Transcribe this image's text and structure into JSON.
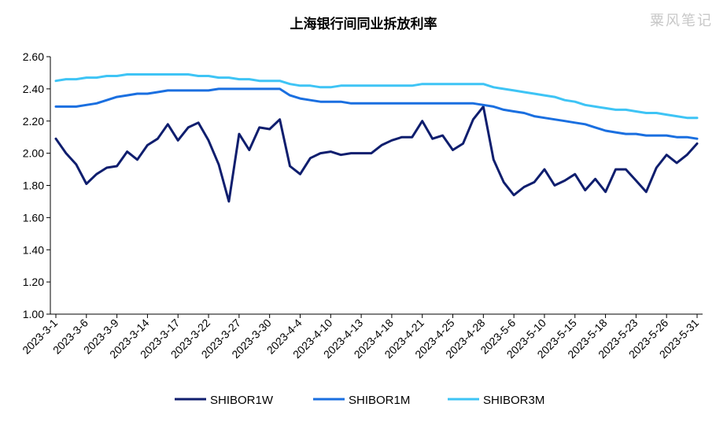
{
  "watermark": "粟风笔记",
  "chart_data": {
    "type": "line",
    "title": "上海银行间同业拆放利率",
    "xlabel": "",
    "ylabel": "",
    "ylim": [
      1.0,
      2.6
    ],
    "yticks": [
      "1.00",
      "1.20",
      "1.40",
      "1.60",
      "1.80",
      "2.00",
      "2.20",
      "2.40",
      "2.60"
    ],
    "grid": false,
    "legend_position": "bottom",
    "x": [
      "2023-3-1",
      "2023-3-2",
      "2023-3-3",
      "2023-3-6",
      "2023-3-7",
      "2023-3-8",
      "2023-3-9",
      "2023-3-10",
      "2023-3-13",
      "2023-3-14",
      "2023-3-15",
      "2023-3-16",
      "2023-3-17",
      "2023-3-20",
      "2023-3-21",
      "2023-3-22",
      "2023-3-23",
      "2023-3-24",
      "2023-3-27",
      "2023-3-28",
      "2023-3-29",
      "2023-3-30",
      "2023-3-31",
      "2023-4-3",
      "2023-4-4",
      "2023-4-6",
      "2023-4-7",
      "2023-4-10",
      "2023-4-11",
      "2023-4-12",
      "2023-4-13",
      "2023-4-14",
      "2023-4-17",
      "2023-4-18",
      "2023-4-19",
      "2023-4-20",
      "2023-4-21",
      "2023-4-23",
      "2023-4-24",
      "2023-4-25",
      "2023-4-26",
      "2023-4-27",
      "2023-4-28",
      "2023-5-4",
      "2023-5-5",
      "2023-5-6",
      "2023-5-8",
      "2023-5-9",
      "2023-5-10",
      "2023-5-11",
      "2023-5-12",
      "2023-5-15",
      "2023-5-16",
      "2023-5-17",
      "2023-5-18",
      "2023-5-19",
      "2023-5-22",
      "2023-5-23",
      "2023-5-24",
      "2023-5-25",
      "2023-5-26",
      "2023-5-29",
      "2023-5-30",
      "2023-5-31"
    ],
    "x_tick_labels": [
      {
        "index": 0,
        "label": "2023-3-1"
      },
      {
        "index": 3,
        "label": "2023-3-6"
      },
      {
        "index": 6,
        "label": "2023-3-9"
      },
      {
        "index": 9,
        "label": "2023-3-14"
      },
      {
        "index": 12,
        "label": "2023-3-17"
      },
      {
        "index": 15,
        "label": "2023-3-22"
      },
      {
        "index": 18,
        "label": "2023-3-27"
      },
      {
        "index": 21,
        "label": "2023-3-30"
      },
      {
        "index": 24,
        "label": "2023-4-4"
      },
      {
        "index": 27,
        "label": "2023-4-10"
      },
      {
        "index": 30,
        "label": "2023-4-13"
      },
      {
        "index": 33,
        "label": "2023-4-18"
      },
      {
        "index": 36,
        "label": "2023-4-21"
      },
      {
        "index": 39,
        "label": "2023-4-25"
      },
      {
        "index": 42,
        "label": "2023-4-28"
      },
      {
        "index": 45,
        "label": "2023-5-6"
      },
      {
        "index": 48,
        "label": "2023-5-10"
      },
      {
        "index": 51,
        "label": "2023-5-15"
      },
      {
        "index": 54,
        "label": "2023-5-18"
      },
      {
        "index": 57,
        "label": "2023-5-23"
      },
      {
        "index": 60,
        "label": "2023-5-26"
      },
      {
        "index": 63,
        "label": "2023-5-31"
      }
    ],
    "series": [
      {
        "name": "SHIBOR1W",
        "color": "#0f1e6e",
        "values": [
          2.09,
          2.0,
          1.93,
          1.81,
          1.87,
          1.91,
          1.92,
          2.01,
          1.96,
          2.05,
          2.09,
          2.18,
          2.08,
          2.16,
          2.19,
          2.08,
          1.93,
          1.7,
          2.12,
          2.02,
          2.16,
          2.15,
          2.21,
          1.92,
          1.87,
          1.97,
          2.0,
          2.01,
          1.99,
          2.0,
          2.0,
          2.0,
          2.05,
          2.08,
          2.1,
          2.1,
          2.2,
          2.09,
          2.11,
          2.02,
          2.06,
          2.21,
          2.29,
          1.96,
          1.82,
          1.74,
          1.79,
          1.82,
          1.9,
          1.8,
          1.83,
          1.87,
          1.77,
          1.84,
          1.76,
          1.9,
          1.9,
          1.83,
          1.76,
          1.91,
          1.99,
          1.94,
          1.99,
          2.06
        ]
      },
      {
        "name": "SHIBOR1M",
        "color": "#1a6fe0",
        "values": [
          2.29,
          2.29,
          2.29,
          2.3,
          2.31,
          2.33,
          2.35,
          2.36,
          2.37,
          2.37,
          2.38,
          2.39,
          2.39,
          2.39,
          2.39,
          2.39,
          2.4,
          2.4,
          2.4,
          2.4,
          2.4,
          2.4,
          2.4,
          2.36,
          2.34,
          2.33,
          2.32,
          2.32,
          2.32,
          2.31,
          2.31,
          2.31,
          2.31,
          2.31,
          2.31,
          2.31,
          2.31,
          2.31,
          2.31,
          2.31,
          2.31,
          2.31,
          2.3,
          2.29,
          2.27,
          2.26,
          2.25,
          2.23,
          2.22,
          2.21,
          2.2,
          2.19,
          2.18,
          2.16,
          2.14,
          2.13,
          2.12,
          2.12,
          2.11,
          2.11,
          2.11,
          2.1,
          2.1,
          2.09
        ]
      },
      {
        "name": "SHIBOR3M",
        "color": "#3ec4f5",
        "values": [
          2.45,
          2.46,
          2.46,
          2.47,
          2.47,
          2.48,
          2.48,
          2.49,
          2.49,
          2.49,
          2.49,
          2.49,
          2.49,
          2.49,
          2.48,
          2.48,
          2.47,
          2.47,
          2.46,
          2.46,
          2.45,
          2.45,
          2.45,
          2.43,
          2.42,
          2.42,
          2.41,
          2.41,
          2.42,
          2.42,
          2.42,
          2.42,
          2.42,
          2.42,
          2.42,
          2.42,
          2.43,
          2.43,
          2.43,
          2.43,
          2.43,
          2.43,
          2.43,
          2.41,
          2.4,
          2.39,
          2.38,
          2.37,
          2.36,
          2.35,
          2.33,
          2.32,
          2.3,
          2.29,
          2.28,
          2.27,
          2.27,
          2.26,
          2.25,
          2.25,
          2.24,
          2.23,
          2.22,
          2.22
        ]
      }
    ]
  }
}
